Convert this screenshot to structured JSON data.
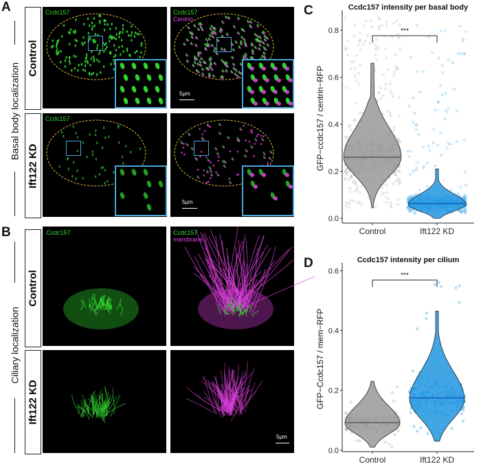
{
  "panel_labels": {
    "A": "A",
    "B": "B",
    "C": "C",
    "D": "D"
  },
  "side_labels": {
    "basal": "Basal body localization",
    "ciliary": "Ciliary localization"
  },
  "rows": {
    "control": "Control",
    "kd": "Ift122 KD"
  },
  "micro_labels": {
    "ccdc157": "Ccdc157",
    "centrin": "Centrin",
    "membrane": "membrane",
    "scale": "5μm"
  },
  "colors": {
    "green": "#33dd33",
    "magenta": "#e040e0",
    "inset_border": "#4aa8dd",
    "ellipse": "#e6c440"
  },
  "chart_data": [
    {
      "type": "violin",
      "title": "Ccdc157 intensity per basal body",
      "xlabel": "",
      "ylabel": "GFP−ccdc157 / centrin−RFP",
      "categories": [
        "Control",
        "Ift122 KD"
      ],
      "ylim": [
        -0.02,
        0.87
      ],
      "yticks": [
        "0.0",
        "0.2",
        "0.4",
        "0.6",
        "0.8"
      ],
      "series": [
        {
          "color": "#999999",
          "median": 0.26,
          "min": 0.045,
          "max": 0.66,
          "point_max": 0.86
        },
        {
          "color": "#2196e0",
          "median": 0.063,
          "min": 0.0,
          "max": 0.21,
          "point_max": 0.82
        }
      ],
      "significance": "***"
    },
    {
      "type": "violin",
      "title": "Ccdc157 intensity per cilium",
      "xlabel": "",
      "ylabel": "GFP−Ccdc157 / mem−RFP",
      "categories": [
        "Control",
        "Ift122 KD"
      ],
      "ylim": [
        -0.005,
        0.615
      ],
      "yticks": [
        "0.0",
        "0.2",
        "0.4",
        "0.6"
      ],
      "series": [
        {
          "color": "#999999",
          "median": 0.092,
          "min": 0.01,
          "max": 0.23,
          "point_max": 0.23
        },
        {
          "color": "#2196e0",
          "median": 0.175,
          "min": 0.03,
          "max": 0.465,
          "point_max": 0.57
        }
      ],
      "significance": "***"
    }
  ]
}
